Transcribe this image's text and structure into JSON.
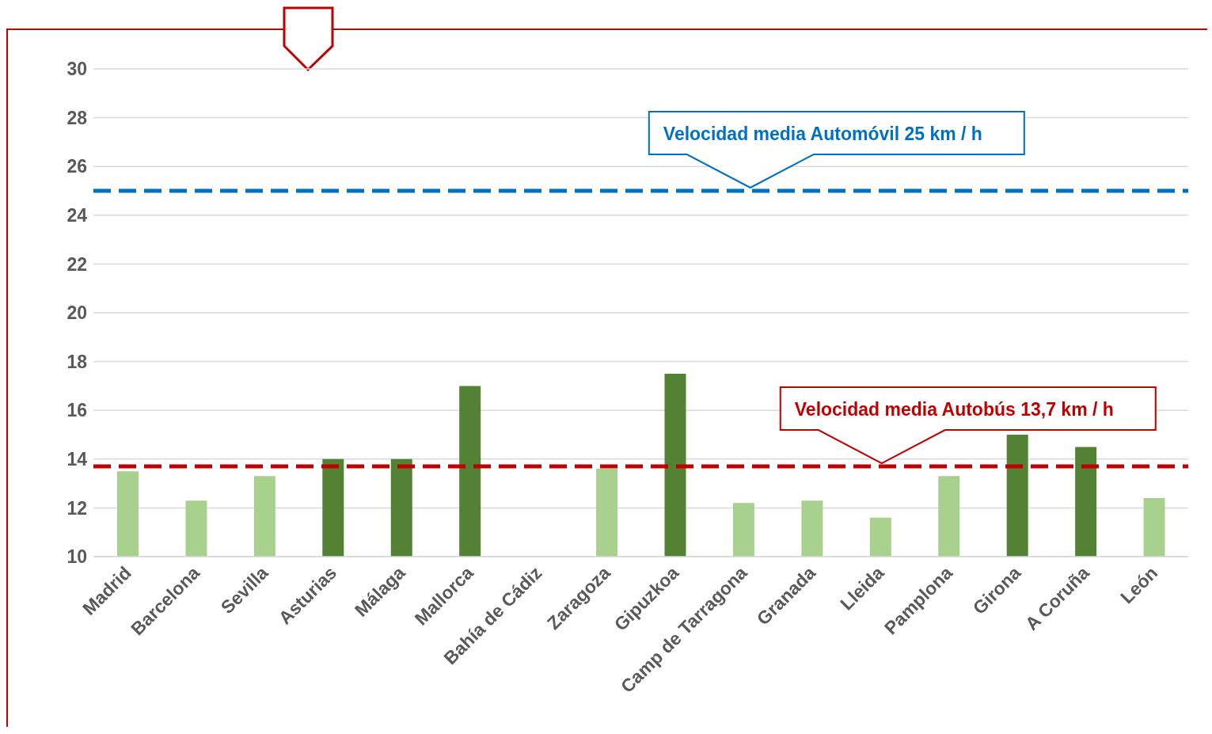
{
  "chart_data": {
    "type": "bar",
    "categories": [
      "Madrid",
      "Barcelona",
      "Sevilla",
      "Asturias",
      "Málaga",
      "Mallorca",
      "Bahía de Cádiz",
      "Zaragoza",
      "Gipuzkoa",
      "Camp de Tarragona",
      "Granada",
      "Lleida",
      "Pamplona",
      "Girona",
      "A Coruña",
      "León"
    ],
    "values": [
      13.5,
      12.3,
      13.3,
      14.0,
      14.0,
      17.0,
      null,
      13.6,
      17.5,
      12.2,
      12.3,
      11.6,
      13.3,
      15.0,
      14.5,
      12.4
    ],
    "colors": [
      "#a9d18e",
      "#a9d18e",
      "#a9d18e",
      "#548235",
      "#548235",
      "#548235",
      "#a9d18e",
      "#a9d18e",
      "#548235",
      "#a9d18e",
      "#a9d18e",
      "#a9d18e",
      "#a9d18e",
      "#548235",
      "#548235",
      "#a9d18e"
    ],
    "ylim": [
      10,
      30
    ],
    "yticks": [
      10,
      12,
      14,
      16,
      18,
      20,
      22,
      24,
      26,
      28,
      30
    ],
    "grid": "y",
    "ref_lines": [
      {
        "axis": "y",
        "value": 25,
        "label": "Velocidad media Automóvil 25 km / h",
        "color": "#0070c0",
        "line_style": "dashed"
      },
      {
        "axis": "y",
        "value": 13.7,
        "label": "Velocidad media Autobús 13,7 km / h",
        "color": "#c00000",
        "line_style": "dashed"
      }
    ]
  }
}
